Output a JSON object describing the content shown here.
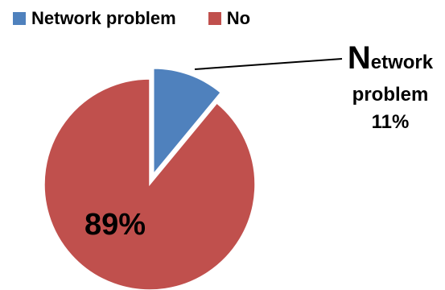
{
  "chart_data": {
    "type": "pie",
    "categories": [
      "Network problem",
      "No"
    ],
    "values": [
      11,
      89
    ],
    "colors": [
      "#4f81bd",
      "#c0504d"
    ],
    "exploded": [
      "Network problem"
    ],
    "legend_position": "top-left",
    "legend": [
      "Network problem",
      "No"
    ],
    "data_labels": [
      {
        "category": "Network problem",
        "name_initial": "N",
        "name_rest": "etwork",
        "name_line2": "problem",
        "value_text": "11%"
      },
      {
        "category": "No",
        "value_text": "89%"
      }
    ]
  }
}
